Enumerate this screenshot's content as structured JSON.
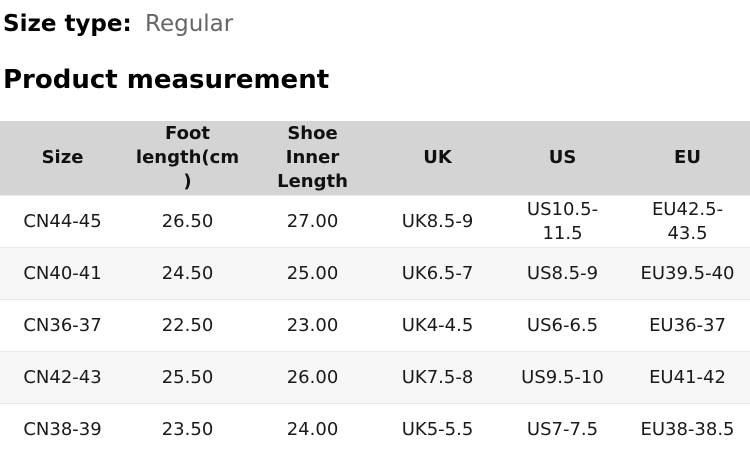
{
  "size_type": {
    "label": "Size type:",
    "value": "Regular"
  },
  "section_title": "Product measurement",
  "table": {
    "columns": [
      "Size",
      "Foot\nlength(cm\n)",
      "Shoe\nInner\nLength",
      "UK",
      "US",
      "EU"
    ],
    "rows": [
      {
        "cells": [
          "CN44-45",
          "26.50",
          "27.00",
          "UK8.5-9",
          "US10.5-\n11.5",
          "EU42.5-\n43.5"
        ]
      },
      {
        "cells": [
          "CN40-41",
          "24.50",
          "25.00",
          "UK6.5-7",
          "US8.5-9",
          "EU39.5-40"
        ]
      },
      {
        "cells": [
          "CN36-37",
          "22.50",
          "23.00",
          "UK4-4.5",
          "US6-6.5",
          "EU36-37"
        ]
      },
      {
        "cells": [
          "CN42-43",
          "25.50",
          "26.00",
          "UK7.5-8",
          "US9.5-10",
          "EU41-42"
        ]
      },
      {
        "cells": [
          "CN38-39",
          "23.50",
          "24.00",
          "UK5-5.5",
          "US7-7.5",
          "EU38-38.5"
        ]
      }
    ]
  },
  "colors": {
    "header_background": "#d4d4d4",
    "alt_row_background": "#f7f7f7",
    "row_border": "#e9e9e9",
    "text": "#1a1a1a",
    "muted_text": "#666666"
  }
}
